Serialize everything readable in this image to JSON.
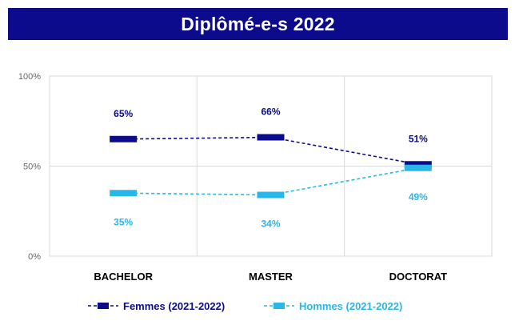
{
  "header": {
    "title": "Diplômé-e-s 2022"
  },
  "chart_data": {
    "type": "line",
    "title": "Diplômé-e-s 2022",
    "categories": [
      "BACHELOR",
      "MASTER",
      "DOCTORAT"
    ],
    "y_ticks": [
      "0%",
      "50%",
      "100%"
    ],
    "ylim": [
      0,
      100
    ],
    "grid": true,
    "legend_position": "bottom",
    "series": [
      {
        "name": "Femmes (2021-2022)",
        "values": [
          65,
          66,
          51
        ],
        "labels": [
          "65%",
          "66%",
          "51%"
        ],
        "color": "#0b0b8c",
        "line_style": "dashed"
      },
      {
        "name": "Hommes (2021-2022)",
        "values": [
          35,
          34,
          49
        ],
        "labels": [
          "35%",
          "34%",
          "49%"
        ],
        "color": "#29b6e8",
        "line_style": "dashed"
      }
    ]
  }
}
